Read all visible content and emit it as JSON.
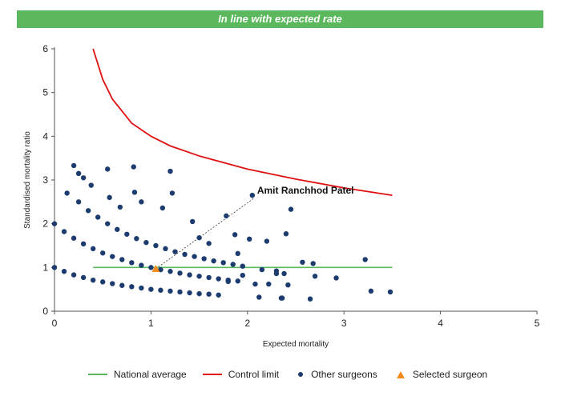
{
  "banner": {
    "title": "In line with expected rate"
  },
  "chart_data": {
    "type": "scatter",
    "title": "In line with expected rate",
    "xlabel": "Expected mortality",
    "ylabel": "Standardised mortality ratio",
    "xlim": [
      0,
      5
    ],
    "ylim": [
      0,
      6
    ],
    "x_ticks": [
      "0",
      "1",
      "2",
      "3",
      "4",
      "5"
    ],
    "y_ticks": [
      "0",
      "1",
      "2",
      "3",
      "4",
      "5",
      "6"
    ],
    "grid": false,
    "legend_position": "bottom",
    "series": [
      {
        "name": "National average",
        "kind": "line",
        "color": "#5cb85c",
        "x": [
          0.4,
          3.5
        ],
        "y": [
          1,
          1
        ]
      },
      {
        "name": "Control limit",
        "kind": "line",
        "color": "#e01010",
        "x": [
          0.4,
          0.5,
          0.6,
          0.8,
          1.0,
          1.2,
          1.5,
          2.0,
          2.5,
          3.0,
          3.5
        ],
        "y": [
          6.0,
          5.3,
          4.85,
          4.3,
          4.0,
          3.78,
          3.55,
          3.25,
          3.02,
          2.82,
          2.65
        ]
      },
      {
        "name": "Other surgeons",
        "kind": "points",
        "color": "#1c3b6e",
        "x": [
          0.0,
          0.1,
          0.2,
          0.3,
          0.4,
          0.5,
          0.6,
          0.7,
          0.8,
          0.9,
          1.0,
          1.1,
          1.2,
          1.3,
          1.4,
          1.5,
          1.6,
          1.7,
          0.0,
          0.1,
          0.2,
          0.3,
          0.4,
          0.5,
          0.6,
          0.7,
          0.8,
          0.9,
          1.0,
          1.1,
          1.2,
          1.3,
          1.4,
          1.5,
          1.6,
          1.7,
          1.8,
          1.9,
          0.25,
          0.35,
          0.45,
          0.55,
          0.65,
          0.75,
          0.85,
          0.95,
          1.05,
          1.15,
          1.25,
          1.35,
          1.45,
          1.55,
          1.65,
          1.75,
          1.85,
          1.95,
          0.2,
          0.25,
          0.3,
          0.55,
          0.82,
          1.2,
          0.13,
          0.38,
          0.57,
          0.68,
          0.83,
          0.9,
          1.12,
          1.22,
          1.43,
          1.5,
          1.6,
          1.78,
          1.87,
          2.02,
          2.05,
          2.2,
          2.45,
          2.4,
          2.57,
          2.68,
          2.7,
          2.92,
          3.22,
          3.28,
          3.48,
          2.42,
          2.3,
          2.22,
          2.65,
          2.36,
          2.15,
          1.8,
          1.95,
          2.08,
          2.12,
          2.38,
          1.9,
          2.3,
          2.35
        ],
        "y": [
          1.0,
          0.91,
          0.83,
          0.77,
          0.71,
          0.67,
          0.63,
          0.59,
          0.56,
          0.53,
          0.5,
          0.48,
          0.46,
          0.44,
          0.42,
          0.4,
          0.39,
          0.37,
          2.0,
          1.82,
          1.67,
          1.54,
          1.43,
          1.33,
          1.25,
          1.18,
          1.11,
          1.05,
          1.0,
          0.95,
          0.91,
          0.87,
          0.83,
          0.8,
          0.77,
          0.74,
          0.71,
          0.69,
          2.5,
          2.3,
          2.15,
          2.0,
          1.87,
          1.76,
          1.66,
          1.57,
          1.5,
          1.43,
          1.36,
          1.3,
          1.25,
          1.2,
          1.15,
          1.11,
          1.07,
          1.03,
          3.33,
          3.15,
          3.05,
          3.25,
          3.3,
          3.2,
          2.7,
          2.88,
          2.6,
          2.38,
          2.72,
          2.5,
          2.36,
          2.7,
          2.05,
          1.68,
          1.55,
          2.18,
          1.75,
          1.65,
          2.65,
          1.6,
          2.33,
          1.77,
          1.12,
          1.09,
          0.8,
          0.76,
          1.18,
          0.46,
          0.44,
          0.6,
          0.92,
          0.62,
          0.28,
          0.3,
          0.95,
          0.68,
          0.82,
          0.62,
          0.32,
          0.86,
          1.32,
          0.86,
          0.3
        ]
      },
      {
        "name": "Selected surgeon",
        "kind": "points",
        "color": "#f28c1e",
        "x": [
          1.05
        ],
        "y": [
          0.97
        ]
      }
    ],
    "annotations": [
      {
        "text": "Amit Ranchhod Patel",
        "x": 2.1,
        "y": 2.65,
        "from_x": 1.05,
        "from_y": 0.97
      }
    ]
  }
}
